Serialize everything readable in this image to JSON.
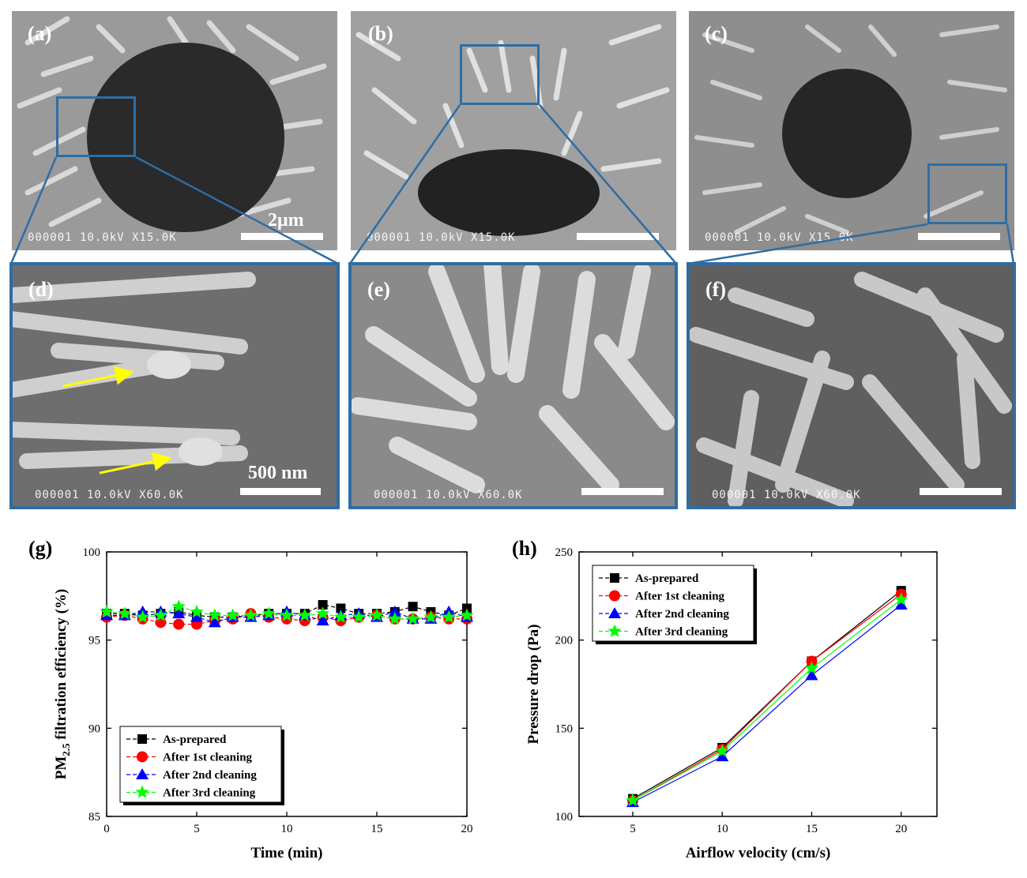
{
  "panels": {
    "a": {
      "label": "(a)",
      "info": "000001 10.0kV X15.0K",
      "scale": "2μm"
    },
    "b": {
      "label": "(b)",
      "info": "000001 10.0kV X15.0K"
    },
    "c": {
      "label": "(c)",
      "info": "000001 10.0kV X15.0K"
    },
    "d": {
      "label": "(d)",
      "info": "000001 10.0kV X60.0K",
      "scale": "500 nm"
    },
    "e": {
      "label": "(e)",
      "info": "000001 10.0kV X60.0K"
    },
    "f": {
      "label": "(f)",
      "info": "000001 10.0kV X60.0K"
    }
  },
  "colors": {
    "box": "#2e6da4",
    "arrow": "#ffff00",
    "series": [
      "#000000",
      "#ff0000",
      "#0000ff",
      "#00ff00"
    ]
  },
  "chart_data": [
    {
      "panel_label": "(g)",
      "type": "line",
      "xlabel": "Time (min)",
      "ylabel": "PM2.5 filtration efficiency (%)",
      "ylabel_main": "PM",
      "ylabel_sub": "2.5",
      "ylabel_rest": " filtration efficiency (%)",
      "xlim": [
        0,
        20
      ],
      "ylim": [
        85,
        100
      ],
      "xticks": [
        0,
        5,
        10,
        15,
        20
      ],
      "yticks": [
        85,
        90,
        95,
        100
      ],
      "legend_position": "bottom-left",
      "x": [
        0,
        1,
        2,
        3,
        4,
        5,
        6,
        7,
        8,
        9,
        10,
        11,
        12,
        13,
        14,
        15,
        16,
        17,
        18,
        19,
        20
      ],
      "series": [
        {
          "name": "As-prepared",
          "marker": "square",
          "values": [
            96.5,
            96.5,
            96.4,
            96.5,
            96.6,
            96.4,
            96.3,
            96.3,
            96.4,
            96.5,
            96.5,
            96.5,
            97.0,
            96.8,
            96.5,
            96.5,
            96.6,
            96.9,
            96.6,
            96.4,
            96.8
          ]
        },
        {
          "name": "After 1st cleaning",
          "marker": "circle",
          "values": [
            96.3,
            96.4,
            96.2,
            96.0,
            95.9,
            95.9,
            96.1,
            96.2,
            96.5,
            96.3,
            96.2,
            96.1,
            96.3,
            96.1,
            96.3,
            96.4,
            96.2,
            96.2,
            96.3,
            96.2,
            96.2
          ]
        },
        {
          "name": "After 2nd cleaning",
          "marker": "triangle",
          "values": [
            96.4,
            96.4,
            96.6,
            96.6,
            96.5,
            96.3,
            96.0,
            96.3,
            96.3,
            96.4,
            96.6,
            96.4,
            96.1,
            96.4,
            96.5,
            96.3,
            96.6,
            96.2,
            96.2,
            96.6,
            96.3
          ]
        },
        {
          "name": "After 3rd cleaning",
          "marker": "star",
          "values": [
            96.6,
            96.5,
            96.3,
            96.4,
            96.9,
            96.6,
            96.4,
            96.4,
            96.4,
            96.5,
            96.4,
            96.4,
            96.5,
            96.3,
            96.3,
            96.4,
            96.2,
            96.2,
            96.3,
            96.3,
            96.4
          ]
        }
      ]
    },
    {
      "panel_label": "(h)",
      "type": "line",
      "xlabel": "Airflow velocity (cm/s)",
      "ylabel": "Pressure drop (Pa)",
      "xlim": [
        2,
        22
      ],
      "ylim": [
        100,
        250
      ],
      "xticks": [
        5,
        10,
        15,
        20
      ],
      "yticks": [
        100,
        150,
        200,
        250
      ],
      "legend_position": "top-left",
      "x": [
        5,
        10,
        15,
        20
      ],
      "series": [
        {
          "name": "As-prepared",
          "marker": "square",
          "values": [
            110,
            139,
            188,
            228
          ]
        },
        {
          "name": "After 1st cleaning",
          "marker": "circle",
          "values": [
            109,
            138,
            188,
            226
          ]
        },
        {
          "name": "After 2nd cleaning",
          "marker": "triangle",
          "values": [
            108,
            134,
            180,
            220
          ]
        },
        {
          "name": "After 3rd cleaning",
          "marker": "star",
          "values": [
            109,
            137,
            184,
            223
          ]
        }
      ]
    }
  ]
}
